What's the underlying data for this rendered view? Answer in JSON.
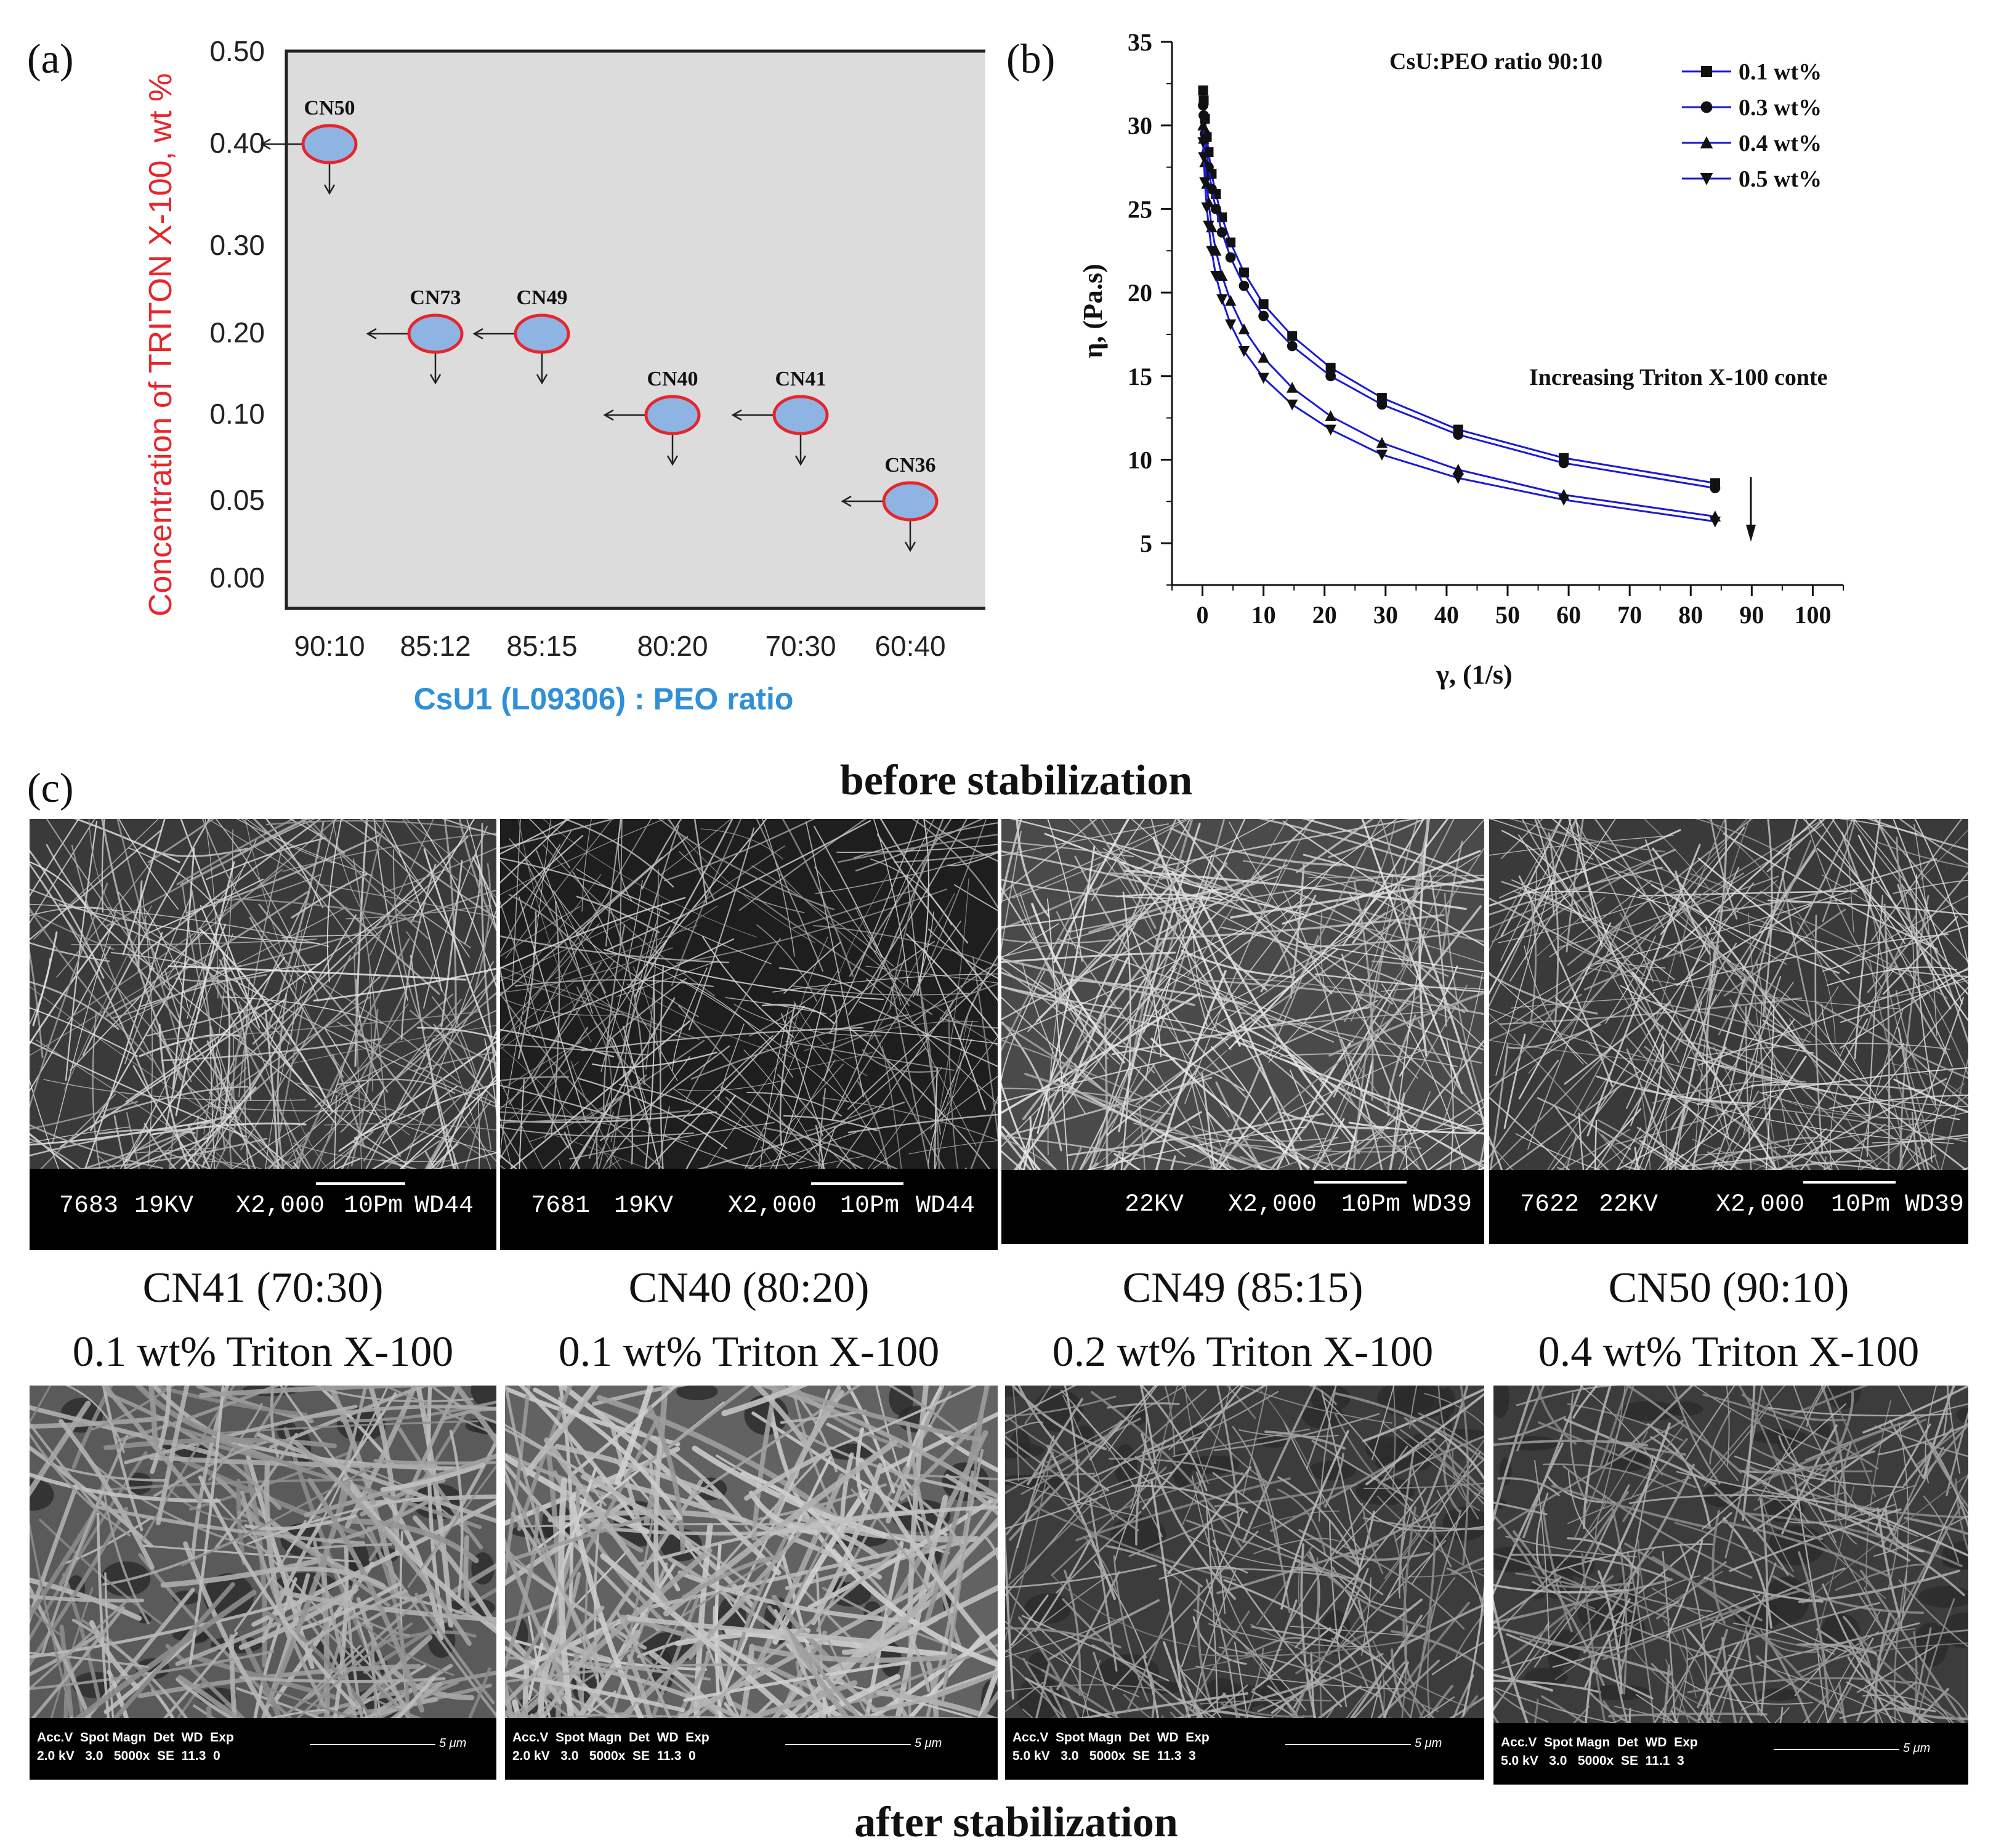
{
  "panels": {
    "a": "(a)",
    "b": "(b)",
    "c": "(c)"
  },
  "chart_data": [
    {
      "type": "scatter",
      "id": "a",
      "xlabel": "CsU1 (L09306) : PEO  ratio",
      "ylabel": "Concentration of TRITON X-100, wt %",
      "categories": [
        "90:10",
        "85:12",
        "85:15",
        "80:20",
        "70:30",
        "60:40"
      ],
      "yticks": [
        "0.50",
        "0.40",
        "0.30",
        "0.20",
        "0.10",
        "0.05",
        "0.00"
      ],
      "points": [
        {
          "label": "CN50",
          "x": "90:10",
          "y": 0.4
        },
        {
          "label": "CN73",
          "x": "85:12",
          "y": 0.2
        },
        {
          "label": "CN49",
          "x": "85:15",
          "y": 0.2
        },
        {
          "label": "CN40",
          "x": "80:20",
          "y": 0.1
        },
        {
          "label": "CN41",
          "x": "70:30",
          "y": 0.1
        },
        {
          "label": "CN36",
          "x": "60:40",
          "y": 0.05
        }
      ],
      "colors": {
        "marker_fill": "#8eb4e3",
        "marker_edge": "#e8252a",
        "plot_bg": "#dcdcdc",
        "ylabel": "#e8252a",
        "xlabel": "#2f8fd8"
      }
    },
    {
      "type": "line",
      "id": "b",
      "title": "CsU:PEO ratio 90:10",
      "xlabel": "γ, (1/s)",
      "ylabel": "η, (Pa.s)",
      "xlim": [
        -5,
        105
      ],
      "ylim": [
        2.5,
        35
      ],
      "xticks": [
        0,
        10,
        20,
        30,
        40,
        50,
        60,
        70,
        80,
        90,
        100
      ],
      "yticks": [
        5,
        10,
        15,
        20,
        25,
        30,
        35
      ],
      "annotation": "Increasing Triton X-100 conte",
      "x": [
        0.1,
        0.2,
        0.4,
        0.7,
        1.0,
        1.5,
        2.2,
        3.2,
        4.6,
        6.8,
        10.0,
        14.7,
        21.0,
        29.4,
        41.9,
        59.2,
        84.0
      ],
      "series": [
        {
          "name": "0.1 wt%",
          "marker": "square",
          "values": [
            32.1,
            31.5,
            30.4,
            29.3,
            28.4,
            27.1,
            25.9,
            24.5,
            23.0,
            21.2,
            19.3,
            17.4,
            15.5,
            13.7,
            11.8,
            10.1,
            8.6
          ]
        },
        {
          "name": "0.3 wt%",
          "marker": "circle",
          "values": [
            31.2,
            30.6,
            29.5,
            28.4,
            27.5,
            26.2,
            25.0,
            23.6,
            22.1,
            20.4,
            18.6,
            16.8,
            15.0,
            13.3,
            11.5,
            9.8,
            8.3
          ]
        },
        {
          "name": "0.4 wt%",
          "marker": "triangle-up",
          "values": [
            30.0,
            29.2,
            27.8,
            26.5,
            25.4,
            23.9,
            22.5,
            21.0,
            19.5,
            17.8,
            16.1,
            14.3,
            12.6,
            11.0,
            9.4,
            7.9,
            6.6
          ]
        },
        {
          "name": "0.5 wt%",
          "marker": "triangle-down",
          "values": [
            29.0,
            28.1,
            26.6,
            25.1,
            24.0,
            22.5,
            21.0,
            19.6,
            18.1,
            16.5,
            14.9,
            13.3,
            11.8,
            10.3,
            8.9,
            7.6,
            6.3
          ]
        }
      ],
      "colors": {
        "line": "#1a1ad6",
        "marker": "#111111"
      }
    }
  ],
  "section_c": {
    "before_title": "before stabilization",
    "after_title": "after stabilization",
    "samples": [
      {
        "name": "CN41 (70:30)",
        "detail": "0.1 wt% Triton X-100",
        "top_bar": {
          "id": "7683",
          "kv": "19KV",
          "mag": "X2,000",
          "scale": "10Pm",
          "wd": "WD44"
        },
        "bottom_bar": {
          "l1": "Acc.V  Spot Magn  Det  WD  Exp",
          "l2": "2.0 kV   3.0   5000x  SE  11.3  0",
          "scale": "5 μm"
        }
      },
      {
        "name": "CN40 (80:20)",
        "detail": "0.1 wt% Triton X-100",
        "top_bar": {
          "id": "7681",
          "kv": "19KV",
          "mag": "X2,000",
          "scale": "10Pm",
          "wd": "WD44"
        },
        "bottom_bar": {
          "l1": "Acc.V  Spot Magn  Det  WD  Exp",
          "l2": "2.0 kV   3.0   5000x  SE  11.3  0",
          "scale": "5 μm"
        }
      },
      {
        "name": "CN49 (85:15)",
        "detail": "0.2 wt% Triton X-100",
        "top_bar": {
          "id": "",
          "kv": "22KV",
          "mag": "X2,000",
          "scale": "10Pm",
          "wd": "WD39"
        },
        "bottom_bar": {
          "l1": "Acc.V  Spot Magn  Det  WD  Exp",
          "l2": "5.0 kV   3.0   5000x  SE  11.3  3",
          "scale": "5 μm"
        }
      },
      {
        "name": "CN50 (90:10)",
        "detail": "0.4 wt% Triton X-100",
        "top_bar": {
          "id": "7622",
          "kv": "22KV",
          "mag": "X2,000",
          "scale": "10Pm",
          "wd": "WD39"
        },
        "bottom_bar": {
          "l1": "Acc.V  Spot Magn  Det  WD  Exp",
          "l2": "5.0 kV   3.0   5000x  SE  11.1  3",
          "scale": "5 μm"
        }
      }
    ]
  }
}
